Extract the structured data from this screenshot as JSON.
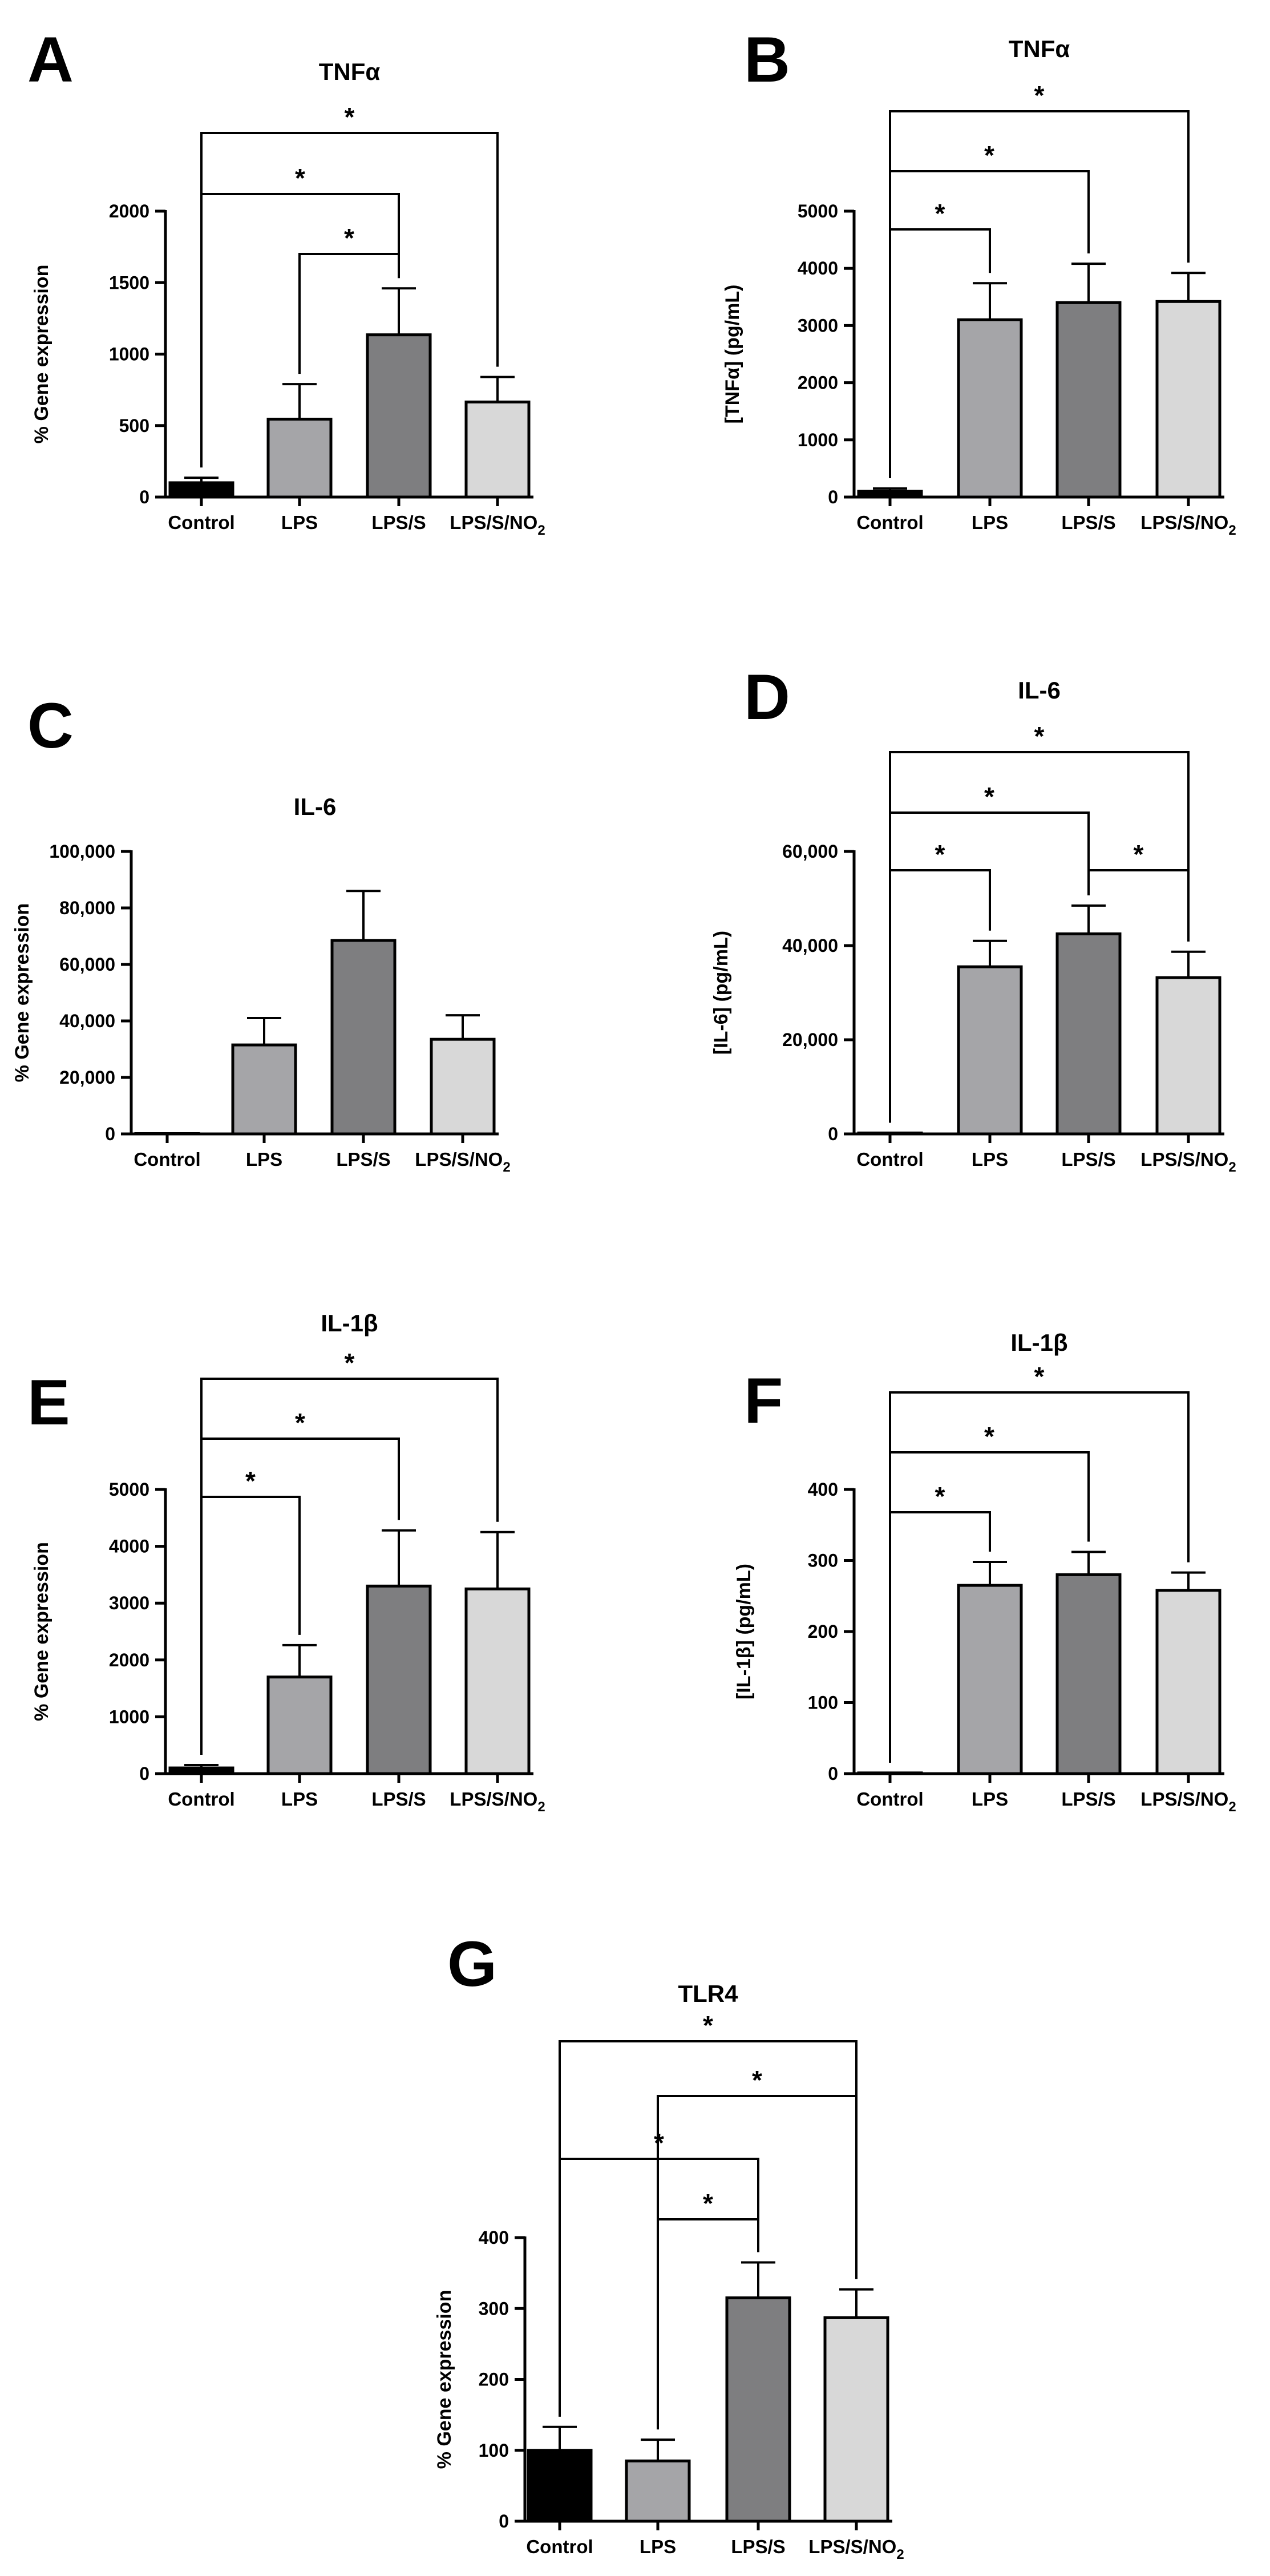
{
  "colors": {
    "Control": "#000000",
    "LPS": "#a5a5a8",
    "LPS/S": "#7e7e80",
    "LPS/S/NO2": "#d8d8d8"
  },
  "chart_data": [
    {
      "id": "A",
      "type": "bar",
      "panel_label": "A",
      "title": "TNFα",
      "ylabel": "% Gene expression",
      "ylim": [
        0,
        2000
      ],
      "yticks": [
        "0",
        "500",
        "1000",
        "1500",
        "2000"
      ],
      "ytick_values": [
        0,
        500,
        1000,
        1500,
        2000
      ],
      "categories": [
        "Control",
        "LPS",
        "LPS/S",
        "LPS/S/NO2"
      ],
      "values": [
        100,
        545,
        1135,
        665
      ],
      "errors": [
        35,
        245,
        325,
        175
      ],
      "significance": [
        {
          "from": 1,
          "to": 2,
          "label": "*"
        },
        {
          "from": 0,
          "to": 2,
          "label": "*"
        },
        {
          "from": 0,
          "to": 3,
          "label": "*"
        }
      ]
    },
    {
      "id": "B",
      "type": "bar",
      "panel_label": "B",
      "title": "TNFα",
      "ylabel": "[TNFα] (pg/mL)",
      "ylim": [
        0,
        5000
      ],
      "yticks": [
        "0",
        "1000",
        "2000",
        "3000",
        "4000",
        "5000"
      ],
      "ytick_values": [
        0,
        1000,
        2000,
        3000,
        4000,
        5000
      ],
      "categories": [
        "Control",
        "LPS",
        "LPS/S",
        "LPS/S/NO2"
      ],
      "values": [
        100,
        3100,
        3400,
        3420
      ],
      "errors": [
        50,
        640,
        680,
        500
      ],
      "significance": [
        {
          "from": 0,
          "to": 1,
          "label": "*"
        },
        {
          "from": 0,
          "to": 2,
          "label": "*"
        },
        {
          "from": 0,
          "to": 3,
          "label": "*"
        }
      ]
    },
    {
      "id": "C",
      "type": "bar",
      "panel_label": "C",
      "title": "IL-6",
      "ylabel": "% Gene expression",
      "ylim": [
        0,
        100000
      ],
      "yticks": [
        "0",
        "20,000",
        "40,000",
        "60,000",
        "80,000",
        "100,000"
      ],
      "ytick_values": [
        0,
        20000,
        40000,
        60000,
        80000,
        100000
      ],
      "categories": [
        "Control",
        "LPS",
        "LPS/S",
        "LPS/S/NO2"
      ],
      "values": [
        100,
        31500,
        68500,
        33500
      ],
      "errors": [
        0,
        9500,
        17500,
        8500
      ],
      "significance": []
    },
    {
      "id": "D",
      "type": "bar",
      "panel_label": "D",
      "title": "IL-6",
      "ylabel": "[IL-6] (pg/mL)",
      "ylim": [
        0,
        60000
      ],
      "yticks": [
        "0",
        "20,000",
        "40,000",
        "60,000"
      ],
      "ytick_values": [
        0,
        20000,
        40000,
        60000
      ],
      "categories": [
        "Control",
        "LPS",
        "LPS/S",
        "LPS/S/NO2"
      ],
      "values": [
        200,
        35500,
        42500,
        33200
      ],
      "errors": [
        0,
        5500,
        6000,
        5500
      ],
      "significance": [
        {
          "from": 0,
          "to": 1,
          "label": "*"
        },
        {
          "from": 2,
          "to": 3,
          "label": "*"
        },
        {
          "from": 0,
          "to": 2,
          "label": "*"
        },
        {
          "from": 0,
          "to": 3,
          "label": "*"
        }
      ]
    },
    {
      "id": "E",
      "type": "bar",
      "panel_label": "E",
      "title": "IL-1β",
      "ylabel": "% Gene expression",
      "ylim": [
        0,
        5000
      ],
      "yticks": [
        "0",
        "1000",
        "2000",
        "3000",
        "4000",
        "5000"
      ],
      "ytick_values": [
        0,
        1000,
        2000,
        3000,
        4000,
        5000
      ],
      "categories": [
        "Control",
        "LPS",
        "LPS/S",
        "LPS/S/NO2"
      ],
      "values": [
        100,
        1700,
        3300,
        3250
      ],
      "errors": [
        50,
        560,
        980,
        1000
      ],
      "significance": [
        {
          "from": 0,
          "to": 1,
          "label": "*"
        },
        {
          "from": 0,
          "to": 2,
          "label": "*"
        },
        {
          "from": 0,
          "to": 3,
          "label": "*"
        }
      ]
    },
    {
      "id": "F",
      "type": "bar",
      "panel_label": "F",
      "title": "IL-1β",
      "ylabel": "[IL-1β] (pg/mL)",
      "ylim": [
        0,
        400
      ],
      "yticks": [
        "0",
        "100",
        "200",
        "300",
        "400"
      ],
      "ytick_values": [
        0,
        100,
        200,
        300,
        400
      ],
      "categories": [
        "Control",
        "LPS",
        "LPS/S",
        "LPS/S/NO2"
      ],
      "values": [
        1,
        265,
        280,
        258
      ],
      "errors": [
        0,
        33,
        32,
        25
      ],
      "significance": [
        {
          "from": 0,
          "to": 1,
          "label": "*"
        },
        {
          "from": 0,
          "to": 2,
          "label": "*"
        },
        {
          "from": 0,
          "to": 3,
          "label": "*"
        }
      ]
    },
    {
      "id": "G",
      "type": "bar",
      "panel_label": "G",
      "title": "TLR4",
      "ylabel": "% Gene expression",
      "ylim": [
        0,
        400
      ],
      "yticks": [
        "0",
        "100",
        "200",
        "300",
        "400"
      ],
      "ytick_values": [
        0,
        100,
        200,
        300,
        400
      ],
      "categories": [
        "Control",
        "LPS",
        "LPS/S",
        "LPS/S/NO2"
      ],
      "values": [
        100,
        85,
        315,
        287
      ],
      "errors": [
        33,
        30,
        50,
        40
      ],
      "significance": [
        {
          "from": 1,
          "to": 2,
          "label": "*"
        },
        {
          "from": 0,
          "to": 2,
          "label": "*"
        },
        {
          "from": 1,
          "to": 3,
          "label": "*"
        },
        {
          "from": 0,
          "to": 3,
          "label": "*"
        }
      ]
    }
  ]
}
